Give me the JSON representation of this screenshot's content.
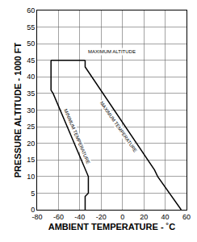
{
  "chart_data": {
    "type": "line",
    "x_label": "AMBIENT TEMPERATURE - ˚C",
    "y_label": "PRESSURE ALTITUDE - 1000 FT",
    "xlim": [
      -80,
      60
    ],
    "xticks": [
      -80,
      -60,
      -40,
      -20,
      0,
      20,
      40,
      60
    ],
    "ylim": [
      0,
      60
    ],
    "yticks": [
      0,
      5,
      10,
      15,
      20,
      25,
      30,
      35,
      40,
      45,
      50,
      55,
      60
    ],
    "grid": true,
    "color": "#000000",
    "series": [
      {
        "name": "MINIMUM TEMPERATURE",
        "x": [
          -35,
          -35,
          -32,
          -32,
          -65,
          -67,
          -67
        ],
        "values": [
          0,
          4,
          5,
          10,
          35,
          36,
          45
        ]
      },
      {
        "name": "MAXIMUM ALTITUDE",
        "x": [
          -67,
          -35
        ],
        "values": [
          45,
          45
        ]
      },
      {
        "name": "MAXIMUM TEMPERATURE",
        "x": [
          -35,
          -35,
          30,
          33,
          55
        ],
        "values": [
          45,
          43,
          12,
          10,
          0
        ]
      }
    ],
    "annotations": [
      {
        "text": "MAXIMUM ALTITUDE",
        "x": -10,
        "y": 47.5
      },
      {
        "text": "MINIMUM TEMPERATURE",
        "x": -43,
        "y": 22
      },
      {
        "text": "MAXIMUM TEMPERATURE",
        "x": -4,
        "y": 25
      }
    ]
  }
}
